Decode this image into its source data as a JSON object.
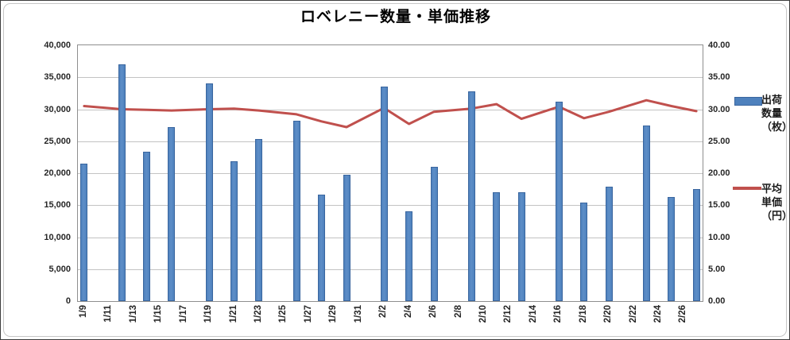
{
  "title": "ロベレニー数量・単価推移",
  "legend": {
    "series1_label": "出荷\n数量\n（枚）",
    "series2_label": "平均\n単価\n（円）"
  },
  "chart_data": {
    "type": "bar",
    "subtype": "combo-bar-line",
    "title": "ロベレニー数量・単価推移",
    "x": [
      "1/9",
      "1/12",
      "1/14",
      "1/16",
      "1/19",
      "1/21",
      "1/23",
      "1/26",
      "1/28",
      "1/30",
      "2/2",
      "2/4",
      "2/6",
      "2/9",
      "2/11",
      "2/13",
      "2/16",
      "2/18",
      "2/20",
      "2/23",
      "2/25",
      "2/27"
    ],
    "x_day_offset": [
      0,
      3,
      5,
      7,
      10,
      12,
      14,
      17,
      19,
      21,
      24,
      26,
      28,
      31,
      33,
      35,
      38,
      40,
      42,
      45,
      47,
      49
    ],
    "x_axis_range_days": 50,
    "series": [
      {
        "name": "出荷数量（枚）",
        "type": "bar",
        "axis": "left",
        "color": "#4E81BD",
        "border_color": "#3A669F",
        "values": [
          21500,
          37000,
          23300,
          27200,
          34000,
          21900,
          25300,
          28200,
          16600,
          19800,
          33500,
          14100,
          21000,
          32800,
          17000,
          17000,
          31200,
          15400,
          17900,
          27500,
          16300,
          17500
        ]
      },
      {
        "name": "平均単価（円）",
        "type": "line",
        "axis": "right",
        "color": "#C0504D",
        "values": [
          30.5,
          30.0,
          29.9,
          29.8,
          30.0,
          30.1,
          29.8,
          29.2,
          28.1,
          27.2,
          30.2,
          27.7,
          29.6,
          30.1,
          30.8,
          28.5,
          30.4,
          28.6,
          29.6,
          31.4,
          30.5,
          29.7
        ]
      }
    ],
    "left_axis": {
      "min": 0,
      "max": 40000,
      "step": 5000,
      "tick_labels": [
        "40,000",
        "35,000",
        "30,000",
        "25,000",
        "20,000",
        "15,000",
        "10,000",
        "5,000",
        "0"
      ]
    },
    "right_axis": {
      "min": 0,
      "max": 40,
      "step": 5,
      "tick_labels": [
        "40.00",
        "35.00",
        "30.00",
        "25.00",
        "20.00",
        "15.00",
        "10.00",
        "5.00",
        "0.00"
      ]
    },
    "x_tick_labels": [
      "1/9",
      "1/11",
      "1/13",
      "1/15",
      "1/17",
      "1/19",
      "1/21",
      "1/23",
      "1/25",
      "1/27",
      "1/29",
      "1/31",
      "2/2",
      "2/4",
      "2/6",
      "2/8",
      "2/10",
      "2/12",
      "2/14",
      "2/16",
      "2/18",
      "2/20",
      "2/22",
      "2/24",
      "2/26"
    ],
    "x_tick_day_offset": [
      0,
      2,
      4,
      6,
      8,
      10,
      12,
      14,
      16,
      18,
      20,
      22,
      24,
      26,
      28,
      30,
      32,
      34,
      36,
      38,
      40,
      42,
      44,
      46,
      48
    ],
    "grid": true,
    "legend_position": "right"
  }
}
